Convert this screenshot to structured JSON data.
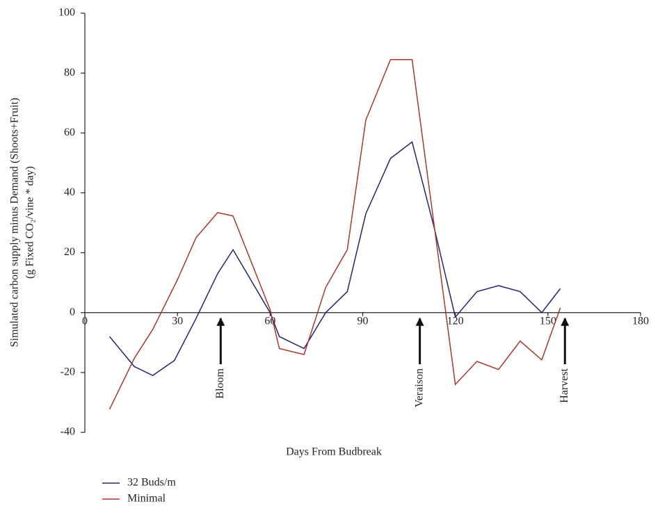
{
  "chart_data": {
    "type": "line",
    "xlabel": "Days From Budbreak",
    "ylabel": [
      "Simulated carbon supply minus Demand (Shoots+Fruit)",
      "(g Fixed CO₂/vine * day)"
    ],
    "xlim": [
      0,
      180
    ],
    "xticks": [
      0,
      30,
      60,
      90,
      120,
      150,
      180
    ],
    "ylim": [
      -40,
      100
    ],
    "yticks": [
      -40,
      -20,
      0,
      20,
      40,
      60,
      80,
      100
    ],
    "series": [
      {
        "name": "32 Buds/m",
        "color": "#23236e",
        "x": [
          8,
          16,
          22,
          29,
          36,
          43,
          48,
          60,
          63,
          71,
          78,
          85,
          91,
          99,
          106,
          113,
          120,
          127,
          134,
          141,
          148,
          154
        ],
        "values": [
          -8,
          -18,
          -21,
          -16,
          -2,
          13,
          21,
          0,
          -8,
          -12,
          0,
          7,
          33,
          51.5,
          57,
          29,
          -1.5,
          7,
          9,
          7,
          0,
          8
        ]
      },
      {
        "name": "Minimal",
        "color": "#a8362a",
        "x": [
          8,
          16,
          22,
          30,
          36,
          43,
          48,
          60,
          63,
          71,
          78,
          85,
          91,
          99,
          106,
          120,
          127,
          134,
          141,
          148,
          154
        ],
        "values": [
          -32.3,
          -15.3,
          -5.6,
          11,
          25,
          33.4,
          32.3,
          1,
          -12,
          -14,
          8.4,
          21,
          64.3,
          84.5,
          84.5,
          -24,
          -16.3,
          -19,
          -9.5,
          -15.8,
          1.6
        ]
      }
    ],
    "annotations": [
      {
        "text": "Bloom",
        "x": 44
      },
      {
        "text": "Veraison",
        "x": 108.5
      },
      {
        "text": "Harvest",
        "x": 155.5
      }
    ]
  }
}
